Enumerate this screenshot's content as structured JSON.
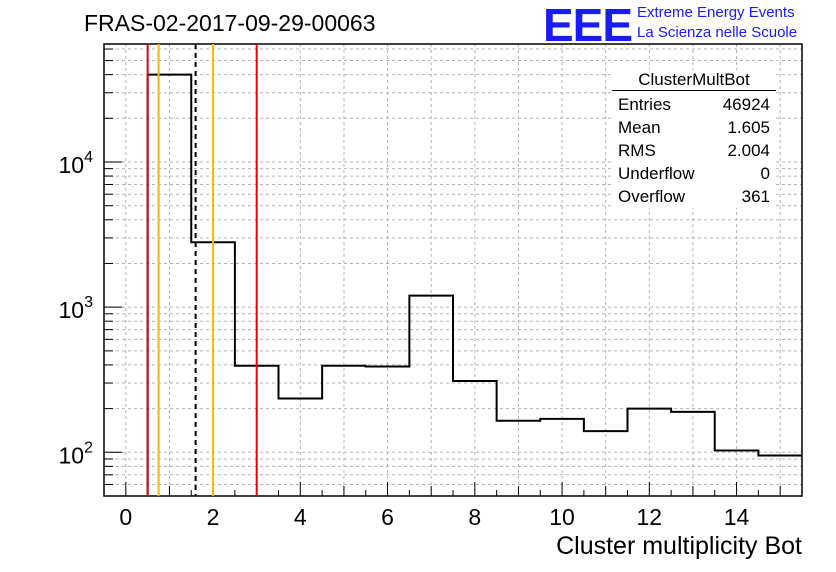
{
  "header": {
    "title": "FRAS-02-2017-09-29-00063",
    "logo_mark": "EEE",
    "logo_line1": "Extreme Energy Events",
    "logo_line2": "La Scienza nelle Scuole"
  },
  "stats": {
    "name": "ClusterMultBot",
    "rows": [
      {
        "label": "Entries",
        "value": "46924"
      },
      {
        "label": "Mean",
        "value": "1.605"
      },
      {
        "label": "RMS",
        "value": "2.004"
      },
      {
        "label": "Underflow",
        "value": "0"
      },
      {
        "label": "Overflow",
        "value": "361"
      }
    ]
  },
  "chart_data": {
    "type": "histogram",
    "title": "FRAS-02-2017-09-29-00063",
    "xlabel": "Cluster multiplicity Bot",
    "ylabel": "",
    "xlim": [
      -0.5,
      15.5
    ],
    "ylim": [
      50,
      65000
    ],
    "yscale": "log",
    "grid": true,
    "x_ticks": [
      0,
      2,
      4,
      6,
      8,
      10,
      12,
      14
    ],
    "y_ticks": [
      {
        "value": 100,
        "base": "10",
        "exp": "2"
      },
      {
        "value": 1000,
        "base": "10",
        "exp": "3"
      },
      {
        "value": 10000,
        "base": "10",
        "exp": "4"
      }
    ],
    "bin_edges": [
      0.5,
      1.5,
      2.5,
      3.5,
      4.5,
      5.5,
      6.5,
      7.5,
      8.5,
      9.5,
      10.5,
      11.5,
      12.5,
      13.5,
      14.5,
      15.5
    ],
    "counts": [
      40000,
      2800,
      395,
      235,
      395,
      390,
      1200,
      310,
      165,
      170,
      140,
      200,
      190,
      103,
      95
    ],
    "vertical_lines": [
      {
        "x": 0.5,
        "color": "#e8000b",
        "style": "solid"
      },
      {
        "x": 0.75,
        "color": "#ffb400",
        "style": "solid"
      },
      {
        "x": 1.6,
        "color": "#000000",
        "style": "dashed"
      },
      {
        "x": 2.0,
        "color": "#ffb400",
        "style": "solid"
      },
      {
        "x": 3.0,
        "color": "#e8000b",
        "style": "solid"
      }
    ]
  }
}
